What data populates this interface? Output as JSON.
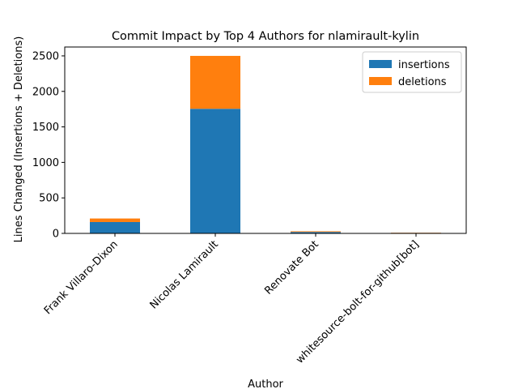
{
  "chart_data": {
    "type": "bar",
    "stacked": true,
    "title": "Commit Impact by Top 4 Authors for nlamirault-kylin",
    "xlabel": "Author",
    "ylabel": "Lines Changed (Insertions + Deletions)",
    "categories": [
      "Frank Villaro-Dixon",
      "Nicolas Lamirault",
      "Renovate Bot",
      "whitesource-bolt-for-github[bot]"
    ],
    "series": [
      {
        "name": "insertions",
        "color": "#1f77b4",
        "values": [
          160,
          1755,
          20,
          7
        ]
      },
      {
        "name": "deletions",
        "color": "#ff7f0e",
        "values": [
          50,
          745,
          10,
          3
        ]
      }
    ],
    "ylim": [
      0,
      2625
    ],
    "yticks": [
      0,
      500,
      1000,
      1500,
      2000,
      2500
    ],
    "grid": false,
    "legend_position": "top-right"
  }
}
